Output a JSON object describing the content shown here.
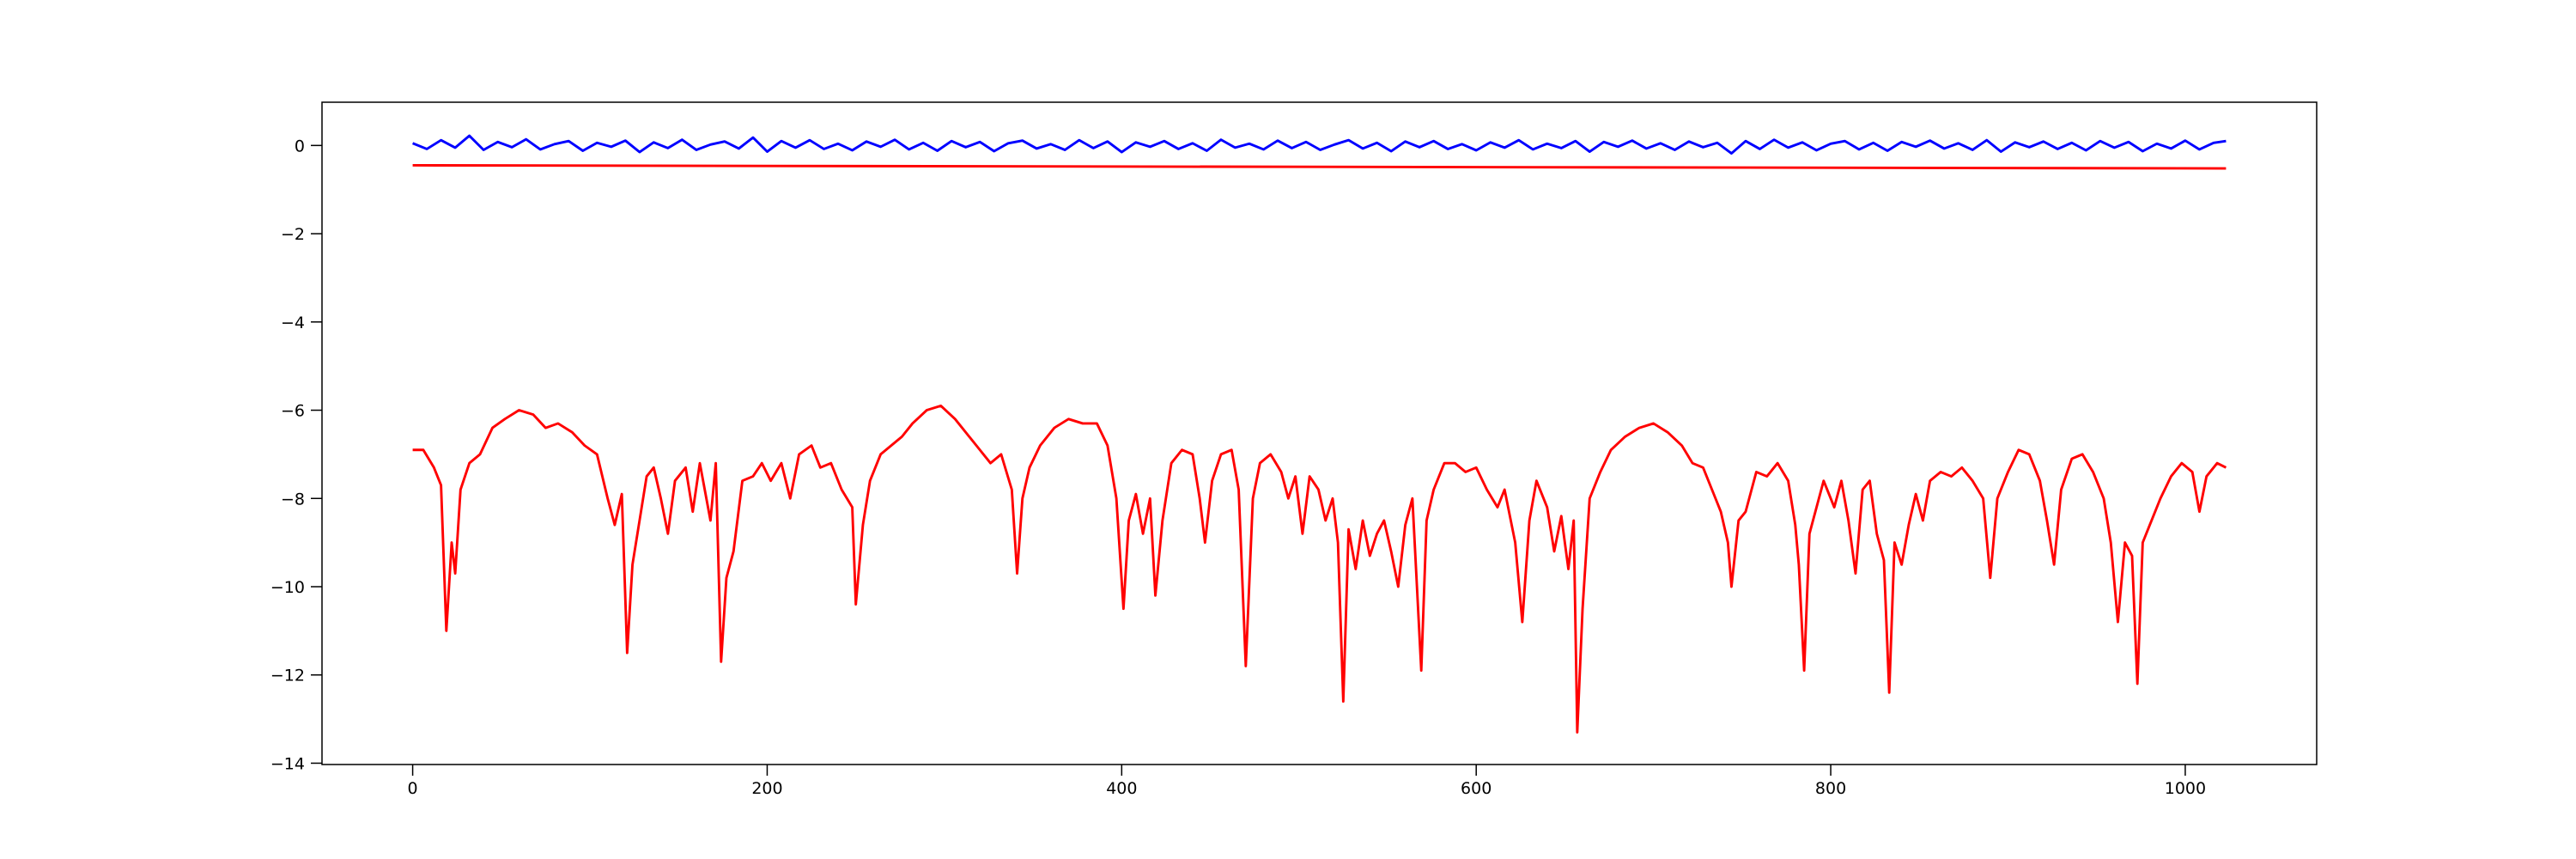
{
  "chart_data": {
    "type": "line",
    "xlim": [
      -51.15,
      1074.15
    ],
    "ylim": [
      -14.03,
      0.98
    ],
    "xticks": [
      0,
      200,
      400,
      600,
      800,
      1000
    ],
    "yticks": [
      {
        "value": -14,
        "label": "−14"
      },
      {
        "value": -12,
        "label": "−12"
      },
      {
        "value": -10,
        "label": "−10"
      },
      {
        "value": -8,
        "label": "−8"
      },
      {
        "value": -6,
        "label": "−6"
      },
      {
        "value": -4,
        "label": "−4"
      },
      {
        "value": -2,
        "label": "−2"
      },
      0
    ],
    "series": [
      {
        "color": "#0000ff",
        "x": [
          0,
          8,
          16,
          24,
          32,
          40,
          48,
          56,
          64,
          72,
          80,
          88,
          96,
          104,
          112,
          120,
          128,
          136,
          144,
          152,
          160,
          168,
          176,
          184,
          192,
          200,
          208,
          216,
          224,
          232,
          240,
          248,
          256,
          264,
          272,
          280,
          288,
          296,
          304,
          312,
          320,
          328,
          336,
          344,
          352,
          360,
          368,
          376,
          384,
          392,
          400,
          408,
          416,
          424,
          432,
          440,
          448,
          456,
          464,
          472,
          480,
          488,
          496,
          504,
          512,
          520,
          528,
          536,
          544,
          552,
          560,
          568,
          576,
          584,
          592,
          600,
          608,
          616,
          624,
          632,
          640,
          648,
          656,
          664,
          672,
          680,
          688,
          696,
          704,
          712,
          720,
          728,
          736,
          744,
          752,
          760,
          768,
          776,
          784,
          792,
          800,
          808,
          816,
          824,
          832,
          840,
          848,
          856,
          864,
          872,
          880,
          888,
          896,
          904,
          912,
          920,
          928,
          936,
          944,
          952,
          960,
          968,
          976,
          984,
          992,
          1000,
          1008,
          1016,
          1023
        ],
        "values": [
          0.05,
          -0.08,
          0.12,
          -0.05,
          0.22,
          -0.1,
          0.08,
          -0.04,
          0.14,
          -0.09,
          0.03,
          0.1,
          -0.12,
          0.06,
          -0.03,
          0.11,
          -0.15,
          0.07,
          -0.06,
          0.13,
          -0.1,
          0.02,
          0.09,
          -0.07,
          0.18,
          -0.14,
          0.1,
          -0.05,
          0.12,
          -0.08,
          0.04,
          -0.11,
          0.09,
          -0.03,
          0.13,
          -0.09,
          0.06,
          -0.12,
          0.1,
          -0.04,
          0.08,
          -0.13,
          0.05,
          0.11,
          -0.07,
          0.03,
          -0.1,
          0.12,
          -0.06,
          0.09,
          -0.15,
          0.07,
          -0.03,
          0.1,
          -0.08,
          0.05,
          -0.12,
          0.13,
          -0.05,
          0.04,
          -0.09,
          0.11,
          -0.06,
          0.08,
          -0.1,
          0.02,
          0.12,
          -0.07,
          0.06,
          -0.13,
          0.09,
          -0.04,
          0.1,
          -0.08,
          0.03,
          -0.11,
          0.07,
          -0.05,
          0.12,
          -0.09,
          0.04,
          -0.06,
          0.1,
          -0.14,
          0.08,
          -0.03,
          0.11,
          -0.07,
          0.05,
          -0.1,
          0.09,
          -0.04,
          0.06,
          -0.18,
          0.1,
          -0.08,
          0.13,
          -0.05,
          0.07,
          -0.11,
          0.04,
          0.1,
          -0.09,
          0.06,
          -0.12,
          0.08,
          -0.03,
          0.11,
          -0.07,
          0.05,
          -0.1,
          0.12,
          -0.14,
          0.07,
          -0.04,
          0.09,
          -0.08,
          0.06,
          -0.11,
          0.1,
          -0.05,
          0.08,
          -0.13,
          0.04,
          -0.07,
          0.11,
          -0.09,
          0.06,
          0.1
        ]
      },
      {
        "color": "#ff0000",
        "x": [
          0,
          1023
        ],
        "values": [
          -0.45,
          -0.52
        ]
      },
      {
        "color": "#ff0000",
        "x": [
          0,
          6,
          12,
          16,
          19,
          22,
          24,
          27,
          32,
          38,
          45,
          52,
          60,
          68,
          75,
          82,
          90,
          97,
          104,
          110,
          114,
          118,
          121,
          124,
          128,
          132,
          136,
          140,
          144,
          148,
          154,
          158,
          162,
          168,
          171,
          174,
          177,
          181,
          186,
          192,
          197,
          202,
          208,
          213,
          218,
          225,
          230,
          236,
          242,
          248,
          250,
          254,
          258,
          264,
          270,
          276,
          282,
          290,
          298,
          306,
          314,
          320,
          326,
          332,
          338,
          341,
          344,
          348,
          354,
          362,
          370,
          378,
          386,
          392,
          397,
          401,
          404,
          408,
          412,
          416,
          419,
          423,
          428,
          434,
          440,
          444,
          447,
          451,
          456,
          462,
          466,
          470,
          474,
          478,
          484,
          490,
          494,
          498,
          502,
          506,
          511,
          515,
          519,
          522,
          525,
          528,
          532,
          536,
          540,
          544,
          548,
          552,
          556,
          560,
          564,
          569,
          572,
          576,
          582,
          588,
          594,
          600,
          606,
          612,
          616,
          622,
          626,
          630,
          634,
          640,
          644,
          648,
          652,
          655,
          657,
          660,
          664,
          670,
          676,
          684,
          692,
          700,
          708,
          716,
          722,
          728,
          734,
          738,
          742,
          744,
          748,
          752,
          758,
          764,
          770,
          776,
          780,
          782,
          785,
          788,
          792,
          796,
          802,
          806,
          810,
          814,
          818,
          822,
          826,
          830,
          833,
          836,
          840,
          844,
          848,
          852,
          856,
          862,
          868,
          874,
          880,
          886,
          890,
          894,
          900,
          906,
          912,
          918,
          922,
          926,
          930,
          936,
          942,
          948,
          954,
          958,
          962,
          966,
          970,
          973,
          976,
          980,
          986,
          992,
          998,
          1004,
          1008,
          1012,
          1018,
          1023
        ],
        "values": [
          -6.9,
          -6.9,
          -7.3,
          -7.7,
          -11.0,
          -9.0,
          -9.7,
          -7.8,
          -7.2,
          -7.0,
          -6.4,
          -6.2,
          -6.0,
          -6.1,
          -6.4,
          -6.3,
          -6.5,
          -6.8,
          -7.0,
          -8.0,
          -8.6,
          -7.9,
          -11.5,
          -9.5,
          -8.5,
          -7.5,
          -7.3,
          -8.0,
          -8.8,
          -7.6,
          -7.3,
          -8.3,
          -7.2,
          -8.5,
          -7.2,
          -11.7,
          -9.8,
          -9.2,
          -7.6,
          -7.5,
          -7.2,
          -7.6,
          -7.2,
          -8.0,
          -7.0,
          -6.8,
          -7.3,
          -7.2,
          -7.8,
          -8.2,
          -10.4,
          -8.6,
          -7.6,
          -7.0,
          -6.8,
          -6.6,
          -6.3,
          -6.0,
          -5.9,
          -6.2,
          -6.6,
          -6.9,
          -7.2,
          -7.0,
          -7.8,
          -9.7,
          -8.0,
          -7.3,
          -6.8,
          -6.4,
          -6.2,
          -6.3,
          -6.3,
          -6.8,
          -8.0,
          -10.5,
          -8.5,
          -7.9,
          -8.8,
          -8.0,
          -10.2,
          -8.5,
          -7.2,
          -6.9,
          -7.0,
          -8.0,
          -9.0,
          -7.6,
          -7.0,
          -6.9,
          -7.8,
          -11.8,
          -8.0,
          -7.2,
          -7.0,
          -7.4,
          -8.0,
          -7.5,
          -8.8,
          -7.5,
          -7.8,
          -8.5,
          -8.0,
          -9.0,
          -12.6,
          -8.7,
          -9.6,
          -8.5,
          -9.3,
          -8.8,
          -8.5,
          -9.2,
          -10.0,
          -8.6,
          -8.0,
          -11.9,
          -8.5,
          -7.8,
          -7.2,
          -7.2,
          -7.4,
          -7.3,
          -7.8,
          -8.2,
          -7.8,
          -9.0,
          -10.8,
          -8.5,
          -7.6,
          -8.2,
          -9.2,
          -8.4,
          -9.6,
          -8.5,
          -13.3,
          -10.5,
          -8.0,
          -7.4,
          -6.9,
          -6.6,
          -6.4,
          -6.3,
          -6.5,
          -6.8,
          -7.2,
          -7.3,
          -7.9,
          -8.3,
          -9.0,
          -10.0,
          -8.5,
          -8.3,
          -7.4,
          -7.5,
          -7.2,
          -7.6,
          -8.6,
          -9.5,
          -11.9,
          -8.8,
          -8.2,
          -7.6,
          -8.2,
          -7.6,
          -8.5,
          -9.7,
          -7.8,
          -7.6,
          -8.8,
          -9.4,
          -12.4,
          -9.0,
          -9.5,
          -8.6,
          -7.9,
          -8.5,
          -7.6,
          -7.4,
          -7.5,
          -7.3,
          -7.6,
          -8.0,
          -9.8,
          -8.0,
          -7.4,
          -6.9,
          -7.0,
          -7.6,
          -8.5,
          -9.5,
          -7.8,
          -7.1,
          -7.0,
          -7.4,
          -8.0,
          -9.0,
          -10.8,
          -9.0,
          -9.3,
          -12.2,
          -9.0,
          -8.6,
          -8.0,
          -7.5,
          -7.2,
          -7.4,
          -8.3,
          -7.5,
          -7.2,
          -7.3
        ]
      }
    ]
  }
}
